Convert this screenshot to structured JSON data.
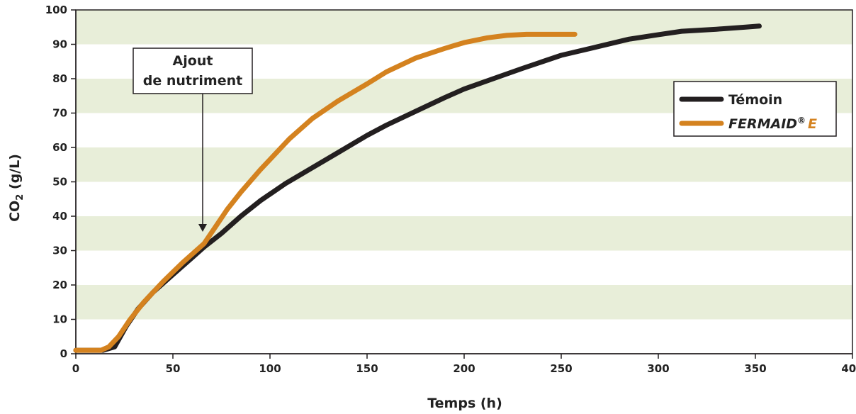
{
  "chart_data": {
    "type": "line",
    "xlabel": "Temps (h)",
    "ylabel": {
      "prefix": "CO",
      "subscript": "2",
      "suffix": " (g/L)"
    },
    "xlim": [
      0,
      400
    ],
    "ylim": [
      0,
      100
    ],
    "x_ticks": [
      0,
      50,
      100,
      150,
      200,
      250,
      300,
      350,
      400
    ],
    "y_ticks": [
      0,
      10,
      20,
      30,
      40,
      50,
      60,
      70,
      80,
      90,
      100
    ],
    "grid": "alternating horizontal bands",
    "band_color": "#e8eed9",
    "legend_position": "right",
    "annotation": {
      "lines": [
        "Ajout",
        "de nutriment"
      ],
      "x": 66,
      "y": 37
    },
    "series": [
      {
        "name": "Témoin",
        "color": "#231f20",
        "x": [
          0,
          10,
          14,
          20,
          26,
          32,
          40,
          50,
          60,
          66,
          75,
          85,
          95,
          108,
          120,
          135,
          150,
          160,
          175,
          190,
          200,
          215,
          230,
          250,
          265,
          285,
          300,
          312,
          330,
          345,
          352
        ],
        "y": [
          1,
          1,
          1,
          2,
          8,
          13,
          18,
          23,
          28,
          31,
          35,
          40,
          44.5,
          49.5,
          53.5,
          58.5,
          63.5,
          66.5,
          70.5,
          74.5,
          77,
          80,
          83,
          86.8,
          88.8,
          91.5,
          92.8,
          93.8,
          94.4,
          95.0,
          95.3
        ]
      },
      {
        "name": "FERMAID®E",
        "name_parts": {
          "main": "FERMAID",
          "reg": "®",
          "suffix": "E"
        },
        "color": "#d4821f",
        "x": [
          0,
          10,
          13,
          17,
          22,
          28,
          35,
          45,
          55,
          66,
          72,
          78,
          85,
          95,
          100,
          110,
          122,
          135,
          150,
          160,
          175,
          190,
          200,
          212,
          222,
          232,
          245,
          257
        ],
        "y": [
          1,
          1,
          1,
          2,
          5,
          10,
          15,
          21,
          26.5,
          32,
          37,
          42,
          47,
          53.5,
          56.5,
          62.5,
          68.5,
          73.5,
          78.5,
          82,
          86,
          88.8,
          90.5,
          91.9,
          92.6,
          92.9,
          92.9,
          92.9
        ]
      }
    ]
  }
}
